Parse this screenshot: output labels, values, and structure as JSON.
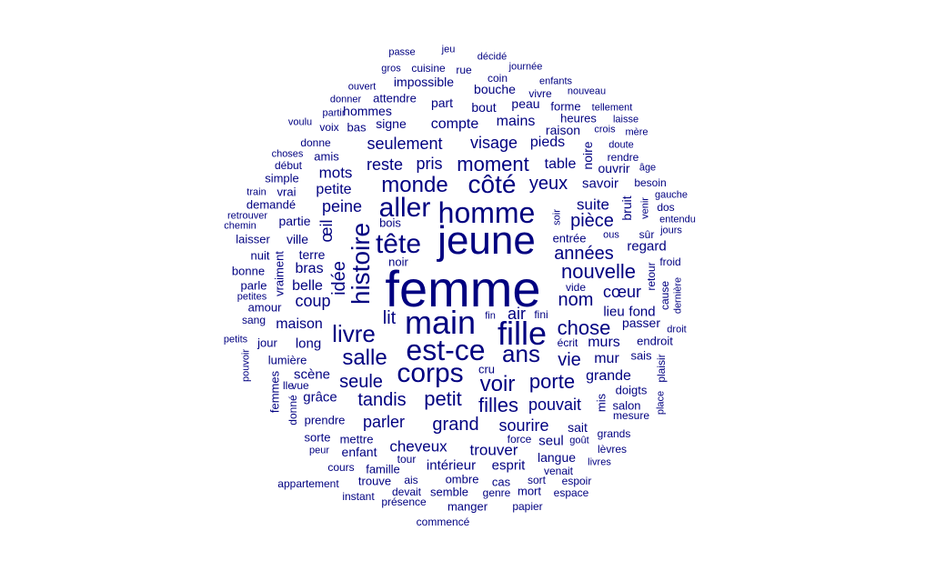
{
  "color": "#000080",
  "words": [
    "femme",
    "jeune",
    "main",
    "fille",
    "homme",
    "est-ce",
    "corps",
    "aller",
    "tête",
    "côté",
    "monde",
    "histoire",
    "livre",
    "ans",
    "salle",
    "voir",
    "moment",
    "nouvelle",
    "filles",
    "tandis",
    "petit",
    "grand",
    "porte",
    "années",
    "chose",
    "yeux",
    "pièce",
    "seulement",
    "visage",
    "reste",
    "pris",
    "vie",
    "nom",
    "seule",
    "idée",
    "œil",
    "parler",
    "sourire",
    "pouvait",
    "cœur",
    "trouver",
    "cheveux",
    "suite",
    "lit",
    "air",
    "coup",
    "mots",
    "peine",
    "compte",
    "mains",
    "murs",
    "mur",
    "grande",
    "table",
    "pieds",
    "bras",
    "belle",
    "petite",
    "maison",
    "lieu",
    "fond",
    "regard",
    "savoir",
    "long",
    "esprit",
    "intérieur",
    "scène",
    "grâce",
    "impossible",
    "hommes",
    "bouche",
    "bout",
    "part",
    "signe",
    "raison",
    "heures",
    "forme",
    "peau",
    "ouvrir",
    "noire",
    "bruit",
    "terre",
    "ville",
    "partie",
    "bois",
    "parle",
    "bonne",
    "amour",
    "passer",
    "endroit",
    "sais",
    "mis",
    "doigts",
    "salon",
    "mesure",
    "seul",
    "sait",
    "langue",
    "enfant",
    "mettre",
    "sorte",
    "prendre",
    "ombre",
    "famille",
    "cours",
    "trouve",
    "ais",
    "semble",
    "devait",
    "présence",
    "manger",
    "papier",
    "mort",
    "espace",
    "espoir",
    "sort",
    "venait",
    "genre",
    "cas",
    "appartement",
    "instant",
    "commencé",
    "entrée",
    "vide",
    "noir",
    "fini",
    "fin",
    "écrit",
    "cru",
    "lumière",
    "jour",
    "sang",
    "vraiment",
    "amis",
    "donne",
    "début",
    "simple",
    "choses",
    "vrai",
    "train",
    "demandé",
    "retrouver",
    "chemin",
    "laisser",
    "nuit",
    "petites",
    "petits",
    "pouvoir",
    "femmes",
    "lle",
    "vue",
    "donné",
    "peur",
    "tour",
    "force",
    "goût",
    "grands",
    "lèvres",
    "livres",
    "plaisir",
    "place",
    "droit",
    "dernière",
    "cause",
    "retour",
    "froid",
    "sûr",
    "jours",
    "entendu",
    "dos",
    "gauche",
    "venir",
    "besoin",
    "âge",
    "rendre",
    "doute",
    "mère",
    "crois",
    "laisse",
    "tellement",
    "nouveau",
    "vivre",
    "enfants",
    "journée",
    "décidé",
    "jeu",
    "passe",
    "gros",
    "cuisine",
    "rue",
    "coin",
    "ouvert",
    "donner",
    "attendre",
    "partir",
    "voix",
    "bas",
    "voulu",
    "soir",
    "ous"
  ]
}
